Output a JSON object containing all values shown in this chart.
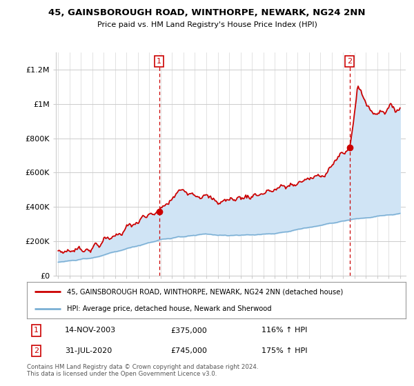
{
  "title": "45, GAINSBOROUGH ROAD, WINTHORPE, NEWARK, NG24 2NN",
  "subtitle": "Price paid vs. HM Land Registry's House Price Index (HPI)",
  "ylim": [
    0,
    1300000
  ],
  "yticks": [
    0,
    200000,
    400000,
    600000,
    800000,
    1000000,
    1200000
  ],
  "ytick_labels": [
    "£0",
    "£200K",
    "£400K",
    "£600K",
    "£800K",
    "£1M",
    "£1.2M"
  ],
  "x_start_year": 1995,
  "x_end_year": 2025,
  "sale1_year": 2003.87,
  "sale1_price": 375000,
  "sale2_year": 2020.58,
  "sale2_price": 745000,
  "sale1_date": "14-NOV-2003",
  "sale1_hpi": "116% ↑ HPI",
  "sale2_date": "31-JUL-2020",
  "sale2_hpi": "175% ↑ HPI",
  "red_color": "#cc0000",
  "blue_color": "#7aafd4",
  "fill_color": "#d0e4f5",
  "dashed_color": "#cc0000",
  "legend_label_red": "45, GAINSBOROUGH ROAD, WINTHORPE, NEWARK, NG24 2NN (detached house)",
  "legend_label_blue": "HPI: Average price, detached house, Newark and Sherwood",
  "footer": "Contains HM Land Registry data © Crown copyright and database right 2024.\nThis data is licensed under the Open Government Licence v3.0.",
  "background_color": "#ffffff",
  "grid_color": "#cccccc"
}
